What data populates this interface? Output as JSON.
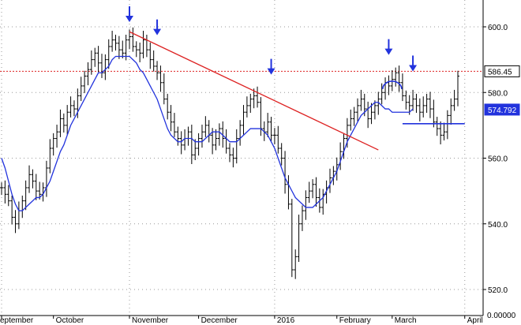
{
  "chart_data": {
    "type": "candlestick",
    "title": "",
    "xlabel": "",
    "ylabel": "",
    "ylim": [
      516,
      606
    ],
    "grid": true,
    "y_ticks": [
      {
        "value": 600,
        "label": "600.0"
      },
      {
        "value": 580,
        "label": "580.0"
      },
      {
        "value": 560,
        "label": "560.0"
      },
      {
        "value": 540,
        "label": "540.0"
      },
      {
        "value": 520,
        "label": "520.0"
      }
    ],
    "bottom_label": "0.00000",
    "x_months": [
      {
        "label": "eptember",
        "bar": 0
      },
      {
        "label": "October",
        "bar": 15
      },
      {
        "label": "November",
        "bar": 37
      },
      {
        "label": "December",
        "bar": 57
      },
      {
        "label": "2016",
        "bar": 79
      },
      {
        "label": "February",
        "bar": 97
      },
      {
        "label": "March",
        "bar": 113
      },
      {
        "label": "April",
        "bar": 134
      }
    ],
    "vertical_gridlines_at_bars": [
      0,
      37,
      79,
      134
    ],
    "price_series": {
      "name": "price",
      "values": [
        551,
        549,
        547,
        542,
        540,
        544,
        547,
        551,
        555,
        553,
        550,
        549,
        551,
        557,
        563,
        566,
        568,
        572,
        570,
        574,
        576,
        575,
        579,
        582,
        585,
        587,
        590,
        592,
        589,
        586,
        590,
        594,
        596,
        595,
        593,
        592,
        596,
        597,
        594,
        593,
        592,
        596,
        593,
        590,
        588,
        586,
        583,
        578,
        574,
        571,
        568,
        566,
        564,
        566,
        568,
        561,
        563,
        566,
        568,
        570,
        567,
        564,
        566,
        569,
        566,
        563,
        561,
        560,
        566,
        570,
        574,
        576,
        578,
        579,
        577,
        569,
        568,
        571,
        567,
        567,
        563,
        560,
        552,
        546,
        526,
        530,
        540,
        544,
        548,
        550,
        552,
        548,
        545,
        549,
        551,
        554,
        556,
        558,
        562,
        566,
        570,
        572,
        574,
        576,
        578,
        575,
        572,
        574,
        576,
        578,
        580,
        583,
        582,
        584,
        586,
        583,
        579,
        577,
        576,
        578,
        576,
        574,
        576,
        578,
        575,
        571,
        569,
        567,
        568,
        573,
        576,
        578,
        585
      ]
    },
    "moving_average": {
      "name": "moving average",
      "color": "#2233dd",
      "values": [
        560,
        557,
        553,
        549,
        546,
        544,
        544,
        545,
        546,
        547,
        548,
        548,
        549,
        551,
        553,
        556,
        559,
        562,
        564,
        567,
        570,
        572,
        574,
        576,
        578,
        580,
        582,
        584,
        586,
        586,
        587,
        588,
        590,
        591,
        591,
        591,
        591,
        591,
        590,
        589,
        587,
        586,
        584,
        582,
        580,
        578,
        575,
        572,
        569,
        567,
        566,
        565,
        565,
        566,
        566,
        566,
        565,
        565,
        565,
        566,
        567,
        568,
        568,
        568,
        567,
        566,
        565,
        565,
        565,
        566,
        567,
        568,
        569,
        569,
        569,
        569,
        568,
        567,
        565,
        563,
        560,
        557,
        554,
        552,
        550,
        548,
        547,
        546,
        545,
        545,
        545,
        546,
        547,
        548,
        550,
        552,
        554,
        556,
        559,
        562,
        565,
        567,
        569,
        571,
        573,
        574,
        575,
        576,
        577,
        577,
        576,
        575,
        575,
        574,
        574,
        574,
        574,
        574,
        574,
        575
      ]
    },
    "trendline": {
      "color": "#dd2222",
      "points": [
        {
          "bar": 37,
          "value": 598.5
        },
        {
          "bar": 109,
          "value": 562.5
        }
      ]
    },
    "reference_line": {
      "value": 586.45,
      "color": "#dd2222",
      "style": "dotted"
    },
    "support_line": {
      "value": 570.5,
      "from_bar": 116,
      "to_bar": 134,
      "color": "#2233dd"
    },
    "arc": {
      "center_bar": 113,
      "value": 582,
      "color": "#2233dd"
    },
    "arrows": [
      {
        "bar": 37,
        "value": 600
      },
      {
        "bar": 45,
        "value": 596
      },
      {
        "bar": 78,
        "value": 584
      },
      {
        "bar": 112,
        "value": 590
      },
      {
        "bar": 119,
        "value": 585
      }
    ],
    "price_labels": [
      {
        "text": "586.45",
        "value": 586.45,
        "bg": "#ffffff",
        "fg": "#000000",
        "border": "#000000"
      },
      {
        "text": "574.792",
        "value": 574.792,
        "bg": "#2233dd",
        "fg": "#ffffff",
        "border": "#2233dd"
      }
    ],
    "colors": {
      "price": "#000000",
      "grid": "#999999",
      "axis": "#000000"
    }
  }
}
